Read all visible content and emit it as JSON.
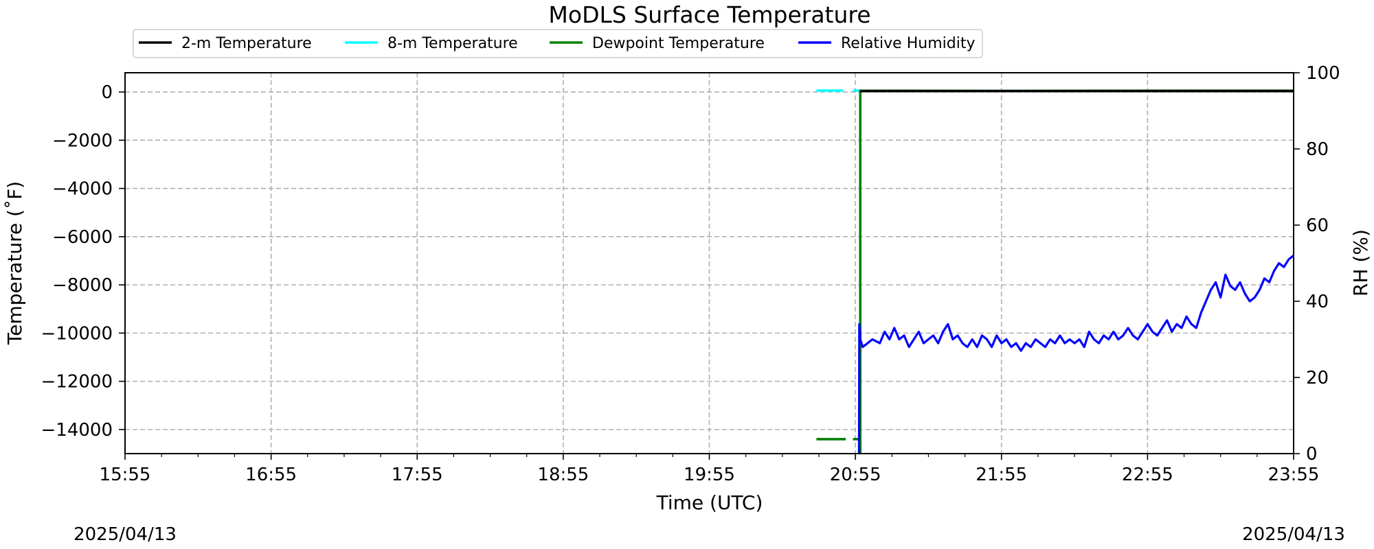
{
  "chart_data": {
    "type": "line",
    "title": "MoDLS Surface Temperature",
    "xlabel": "Time (UTC)",
    "ylabel": "Temperature ($^\\circ$F)",
    "ylabel_text": "Temperature (˚F)",
    "y2label": "RH (%)",
    "date_left": "2025/04/13",
    "date_right": "2025/04/13",
    "x_ticks": [
      "15:55",
      "16:55",
      "17:55",
      "18:55",
      "19:55",
      "20:55",
      "21:55",
      "22:55",
      "23:55"
    ],
    "x_range_minutes": [
      0,
      480
    ],
    "y_ticks": [
      0,
      -2000,
      -4000,
      -6000,
      -8000,
      -10000,
      -12000,
      -14000
    ],
    "y_tick_labels": [
      "0",
      "−2000",
      "−4000",
      "−6000",
      "−8000",
      "−10000",
      "−12000",
      "−14000"
    ],
    "ylim": [
      -15000,
      800
    ],
    "y2_ticks": [
      0,
      20,
      40,
      60,
      80,
      100
    ],
    "y2_tick_labels": [
      "0",
      "20",
      "40",
      "60",
      "80",
      "100"
    ],
    "y2lim": [
      0,
      100
    ],
    "grid": true,
    "legend_position": "top",
    "legend": [
      {
        "name": "2-m Temperature",
        "color": "#000000"
      },
      {
        "name": "8-m Temperature",
        "color": "#00ffff"
      },
      {
        "name": "Dewpoint Temperature",
        "color": "#008000"
      },
      {
        "name": "Relative Humidity",
        "color": "#0000ff"
      }
    ],
    "series": [
      {
        "name": "8-m Temperature",
        "axis": "left",
        "color": "#00ffff",
        "segments": [
          [
            [
              284,
              60
            ],
            [
              295,
              60
            ]
          ],
          [
            [
              299,
              60
            ],
            [
              302,
              60
            ]
          ]
        ]
      },
      {
        "name": "Dewpoint Temperature",
        "axis": "left",
        "color": "#008000",
        "segments": [
          [
            [
              284,
              -14400
            ],
            [
              296,
              -14400
            ]
          ],
          [
            [
              299,
              -14400
            ],
            [
              302,
              -14400
            ]
          ],
          [
            [
              302,
              -15000
            ],
            [
              302,
              50
            ],
            [
              320,
              50
            ],
            [
              360,
              45
            ],
            [
              400,
              50
            ],
            [
              440,
              55
            ],
            [
              480,
              55
            ]
          ]
        ]
      },
      {
        "name": "2-m Temperature",
        "axis": "left",
        "color": "#000000",
        "segments": [
          [
            [
              302,
              40
            ],
            [
              480,
              40
            ]
          ]
        ]
      },
      {
        "name": "Relative Humidity",
        "axis": "right",
        "color": "#0000ff",
        "segments": [
          [
            [
              301.5,
              0
            ],
            [
              301.6,
              34
            ],
            [
              302,
              30
            ],
            [
              303,
              28
            ],
            [
              305,
              29
            ],
            [
              307,
              30
            ],
            [
              310,
              29
            ],
            [
              312,
              32
            ],
            [
              314,
              30
            ],
            [
              316,
              33
            ],
            [
              318,
              30
            ],
            [
              320,
              31
            ],
            [
              322,
              28
            ],
            [
              324,
              30
            ],
            [
              326,
              32
            ],
            [
              328,
              29
            ],
            [
              330,
              30
            ],
            [
              332,
              31
            ],
            [
              334,
              29
            ],
            [
              336,
              32
            ],
            [
              338,
              34
            ],
            [
              340,
              30
            ],
            [
              342,
              31
            ],
            [
              344,
              29
            ],
            [
              346,
              28
            ],
            [
              348,
              30
            ],
            [
              350,
              28
            ],
            [
              352,
              31
            ],
            [
              354,
              30
            ],
            [
              356,
              28
            ],
            [
              358,
              31
            ],
            [
              360,
              29
            ],
            [
              362,
              30
            ],
            [
              364,
              28
            ],
            [
              366,
              29
            ],
            [
              368,
              27
            ],
            [
              370,
              29
            ],
            [
              372,
              28
            ],
            [
              374,
              30
            ],
            [
              376,
              29
            ],
            [
              378,
              28
            ],
            [
              380,
              30
            ],
            [
              382,
              29
            ],
            [
              384,
              31
            ],
            [
              386,
              29
            ],
            [
              388,
              30
            ],
            [
              390,
              29
            ],
            [
              392,
              30
            ],
            [
              394,
              28
            ],
            [
              396,
              32
            ],
            [
              398,
              30
            ],
            [
              400,
              29
            ],
            [
              402,
              31
            ],
            [
              404,
              30
            ],
            [
              406,
              32
            ],
            [
              408,
              30
            ],
            [
              410,
              31
            ],
            [
              412,
              33
            ],
            [
              414,
              31
            ],
            [
              416,
              30
            ],
            [
              418,
              32
            ],
            [
              420,
              34
            ],
            [
              422,
              32
            ],
            [
              424,
              31
            ],
            [
              426,
              33
            ],
            [
              428,
              35
            ],
            [
              430,
              32
            ],
            [
              432,
              34
            ],
            [
              434,
              33
            ],
            [
              436,
              36
            ],
            [
              438,
              34
            ],
            [
              440,
              33
            ],
            [
              442,
              37
            ],
            [
              444,
              40
            ],
            [
              446,
              43
            ],
            [
              448,
              45
            ],
            [
              450,
              41
            ],
            [
              452,
              47
            ],
            [
              454,
              44
            ],
            [
              456,
              43
            ],
            [
              458,
              45
            ],
            [
              460,
              42
            ],
            [
              462,
              40
            ],
            [
              464,
              41
            ],
            [
              466,
              43
            ],
            [
              468,
              46
            ],
            [
              470,
              45
            ],
            [
              472,
              48
            ],
            [
              474,
              50
            ],
            [
              476,
              49
            ],
            [
              478,
              51
            ],
            [
              480,
              52
            ]
          ]
        ]
      }
    ]
  }
}
